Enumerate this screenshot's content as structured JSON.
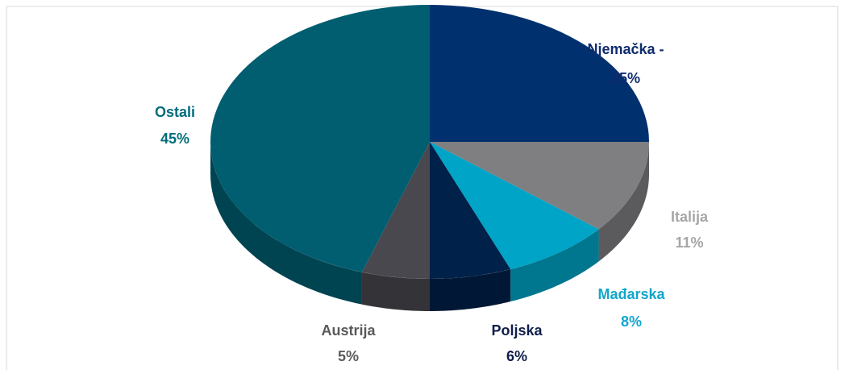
{
  "chart_data": {
    "type": "pie3d",
    "categories": [
      "Njemačka -",
      "Italija",
      "Mađarska",
      "Poljska",
      "Austrija",
      "Ostali"
    ],
    "values": [
      25,
      11,
      8,
      6,
      5,
      45
    ],
    "value_labels": [
      "25%",
      "11%",
      "8%",
      "6%",
      "5%",
      "45%"
    ],
    "colors": [
      "#00306e",
      "#7f7f82",
      "#00a4c6",
      "#00214a",
      "#48484e",
      "#005e70"
    ],
    "label_colors": [
      "#0f2c6e",
      "#a6a6a6",
      "#12a6cc",
      "#0f1e4a",
      "#595959",
      "#006d7c"
    ]
  }
}
